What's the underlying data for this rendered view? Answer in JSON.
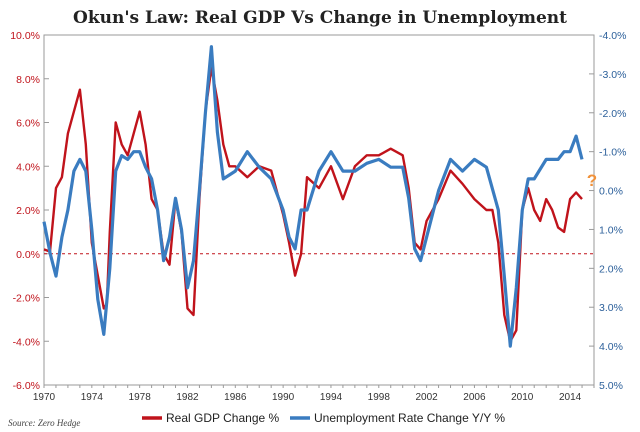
{
  "chart_data": {
    "type": "line",
    "title": "Okun's Law: Real GDP Vs Change in Unemployment",
    "source": "Source: Zero Hedge",
    "annotation": "?",
    "colors": {
      "gdp": "#c0131b",
      "unemployment": "#3a7cc0",
      "zero_line": "#c0131b",
      "annotation": "#f0913a"
    },
    "x_axis": {
      "range": [
        1970,
        2016
      ],
      "ticks": [
        1970,
        1974,
        1978,
        1982,
        1986,
        1990,
        1994,
        1998,
        2002,
        2006,
        2010,
        2014
      ]
    },
    "y_left": {
      "range": [
        -6,
        10
      ],
      "ticks": [
        10,
        8,
        6,
        4,
        2,
        0,
        -2,
        -4,
        -6
      ],
      "tick_labels": [
        "10.0%",
        "8.0%",
        "6.0%",
        "4.0%",
        "2.0%",
        "0.0%",
        "-2.0%",
        "-4.0%",
        "-6.0%"
      ]
    },
    "y_right": {
      "range": [
        5,
        -4
      ],
      "inverted": true,
      "tick_labels": [
        "-4.0%",
        "-3.0%",
        "-2.0%",
        "-1.0%",
        "0.0%",
        "1.0%",
        "2.0%",
        "3.0%",
        "4.0%",
        "5.0%"
      ],
      "ticks": [
        -4,
        -3,
        -2,
        -1,
        0,
        1,
        2,
        3,
        4,
        5
      ]
    },
    "series": [
      {
        "name": "Real GDP Change %",
        "axis": "left",
        "x": [
          1970.0,
          1970.5,
          1971.0,
          1971.5,
          1972.0,
          1972.5,
          1973.0,
          1973.5,
          1974.0,
          1974.5,
          1975.0,
          1975.25,
          1975.5,
          1976.0,
          1976.5,
          1977.0,
          1977.5,
          1978.0,
          1978.5,
          1979.0,
          1979.5,
          1980.0,
          1980.5,
          1981.0,
          1981.5,
          1982.0,
          1982.5,
          1983.0,
          1983.5,
          1984.0,
          1984.5,
          1985.0,
          1985.5,
          1986.0,
          1987.0,
          1988.0,
          1989.0,
          1990.0,
          1990.5,
          1991.0,
          1991.5,
          1992.0,
          1993.0,
          1994.0,
          1995.0,
          1996.0,
          1997.0,
          1998.0,
          1999.0,
          2000.0,
          2000.5,
          2001.0,
          2001.5,
          2002.0,
          2003.0,
          2004.0,
          2005.0,
          2006.0,
          2007.0,
          2007.5,
          2008.0,
          2008.5,
          2009.0,
          2009.5,
          2010.0,
          2010.5,
          2011.0,
          2011.5,
          2012.0,
          2012.5,
          2013.0,
          2013.5,
          2014.0,
          2014.5,
          2015.0
        ],
        "values": [
          0.2,
          0.1,
          3.0,
          3.5,
          5.5,
          6.5,
          7.5,
          5.0,
          0.5,
          -1.0,
          -2.5,
          -2.3,
          1.0,
          6.0,
          5.0,
          4.5,
          5.5,
          6.5,
          5.0,
          2.5,
          2.0,
          0.0,
          -0.5,
          2.5,
          1.0,
          -2.5,
          -2.8,
          2.5,
          6.5,
          8.5,
          7.0,
          5.0,
          4.0,
          4.0,
          3.5,
          4.0,
          3.8,
          1.8,
          0.5,
          -1.0,
          0.0,
          3.5,
          3.0,
          4.0,
          2.5,
          4.0,
          4.5,
          4.5,
          4.8,
          4.5,
          3.0,
          0.5,
          0.2,
          1.5,
          2.5,
          3.8,
          3.2,
          2.5,
          2.0,
          2.0,
          0.5,
          -2.8,
          -4.0,
          -3.5,
          2.0,
          3.0,
          2.0,
          1.5,
          2.5,
          2.0,
          1.2,
          1.0,
          2.5,
          2.8,
          2.5
        ]
      },
      {
        "name": "Unemployment Rate Change Y/Y %",
        "axis": "right",
        "x": [
          1970.0,
          1970.5,
          1971.0,
          1971.5,
          1972.0,
          1972.5,
          1973.0,
          1973.5,
          1974.0,
          1974.5,
          1975.0,
          1975.5,
          1976.0,
          1976.5,
          1977.0,
          1977.5,
          1978.0,
          1978.5,
          1979.0,
          1979.5,
          1980.0,
          1980.5,
          1981.0,
          1981.5,
          1982.0,
          1982.5,
          1983.0,
          1983.5,
          1984.0,
          1984.5,
          1985.0,
          1986.0,
          1987.0,
          1988.0,
          1989.0,
          1990.0,
          1990.5,
          1991.0,
          1991.5,
          1992.0,
          1993.0,
          1994.0,
          1995.0,
          1996.0,
          1997.0,
          1998.0,
          1999.0,
          2000.0,
          2000.5,
          2001.0,
          2001.5,
          2002.0,
          2003.0,
          2004.0,
          2005.0,
          2006.0,
          2007.0,
          2008.0,
          2008.5,
          2009.0,
          2009.5,
          2010.0,
          2010.5,
          2011.0,
          2012.0,
          2013.0,
          2013.5,
          2014.0,
          2014.5,
          2015.0
        ],
        "values": [
          0.8,
          1.6,
          2.2,
          1.2,
          0.5,
          -0.5,
          -0.8,
          -0.5,
          1.0,
          2.8,
          3.7,
          2.0,
          -0.5,
          -0.9,
          -0.8,
          -1.0,
          -1.0,
          -0.6,
          -0.3,
          0.5,
          1.8,
          1.2,
          0.2,
          1.0,
          2.5,
          1.8,
          0.0,
          -2.0,
          -3.7,
          -1.5,
          -0.3,
          -0.5,
          -1.0,
          -0.6,
          -0.3,
          0.5,
          1.2,
          1.5,
          0.5,
          0.5,
          -0.5,
          -1.0,
          -0.5,
          -0.5,
          -0.7,
          -0.8,
          -0.6,
          -0.6,
          0.2,
          1.5,
          1.8,
          1.2,
          0.0,
          -0.8,
          -0.5,
          -0.8,
          -0.6,
          0.5,
          2.2,
          4.0,
          2.5,
          0.5,
          -0.3,
          -0.3,
          -0.8,
          -0.8,
          -1.0,
          -1.0,
          -1.4,
          -0.8
        ]
      }
    ],
    "legend": [
      "Real GDP Change %",
      "Unemployment Rate Change Y/Y %"
    ],
    "legend_position": "bottom",
    "grid": false
  }
}
